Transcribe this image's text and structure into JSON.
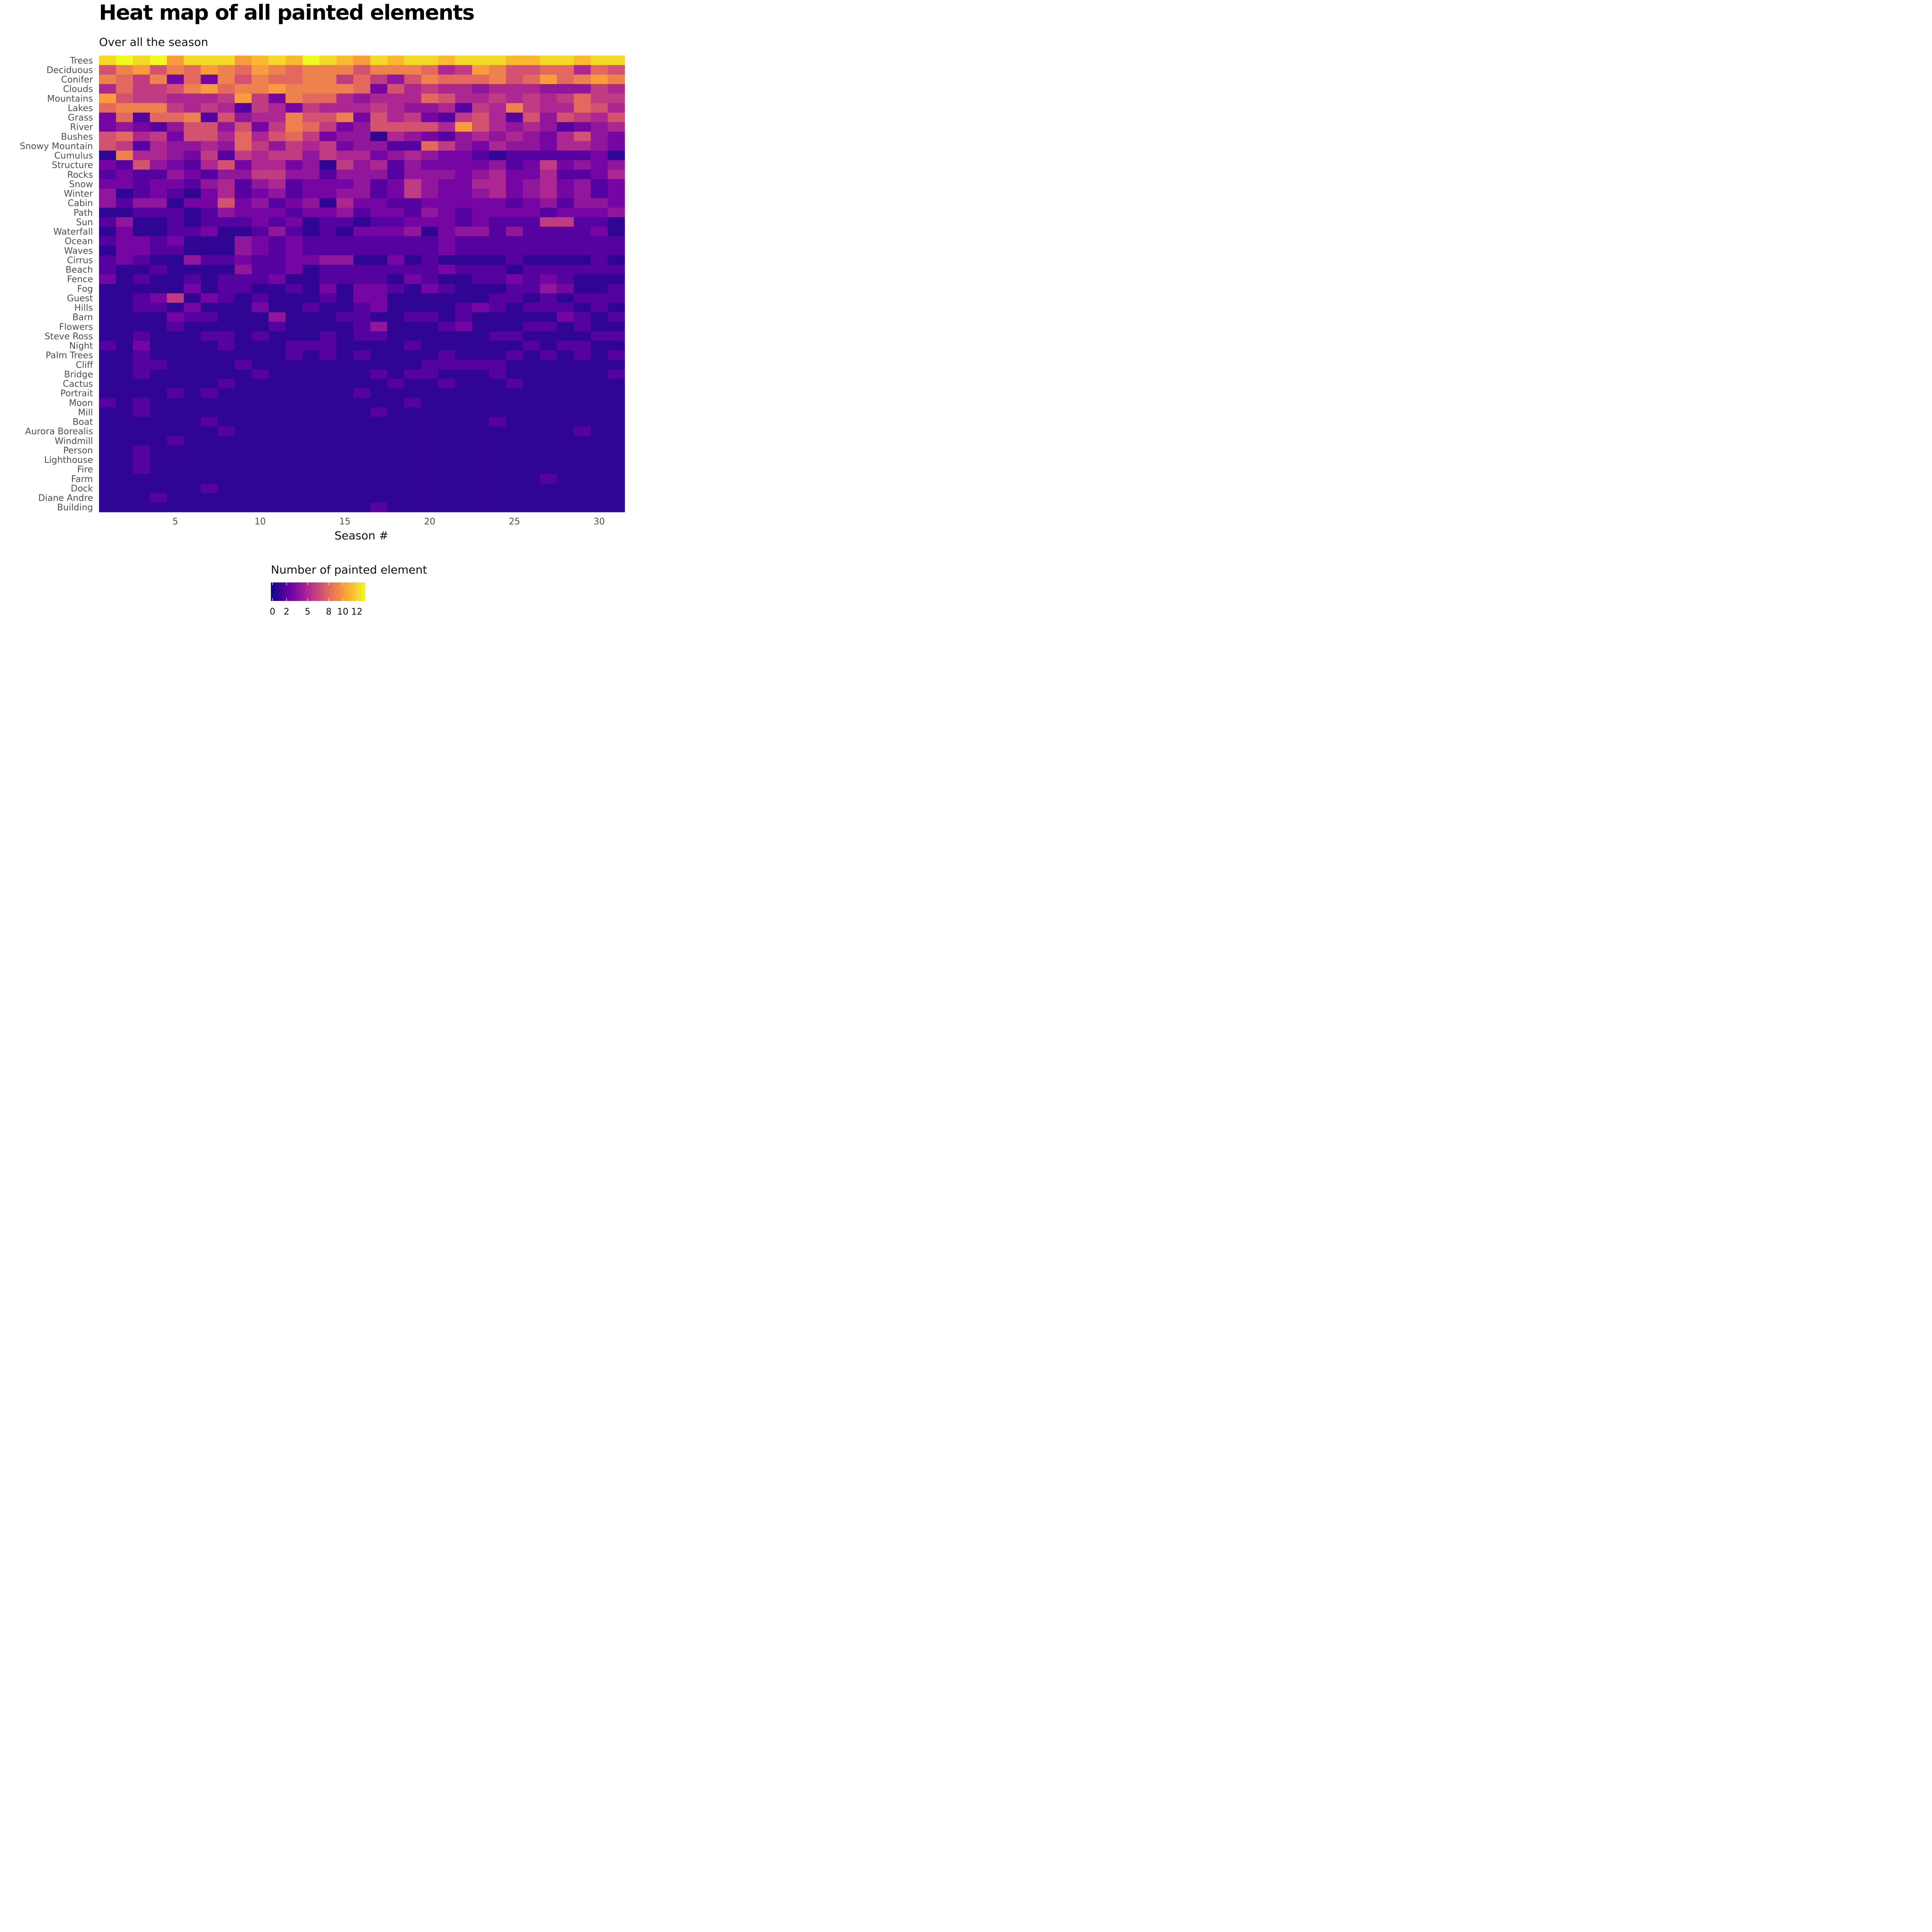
{
  "title": "Heat map of all painted elements",
  "subtitle": "Over all the season",
  "chart_data": {
    "type": "heatmap",
    "xlabel": "Season #",
    "x": [
      1,
      2,
      3,
      4,
      5,
      6,
      7,
      8,
      9,
      10,
      11,
      12,
      13,
      14,
      15,
      16,
      17,
      18,
      19,
      20,
      21,
      22,
      23,
      24,
      25,
      26,
      27,
      28,
      29,
      30,
      31
    ],
    "xticks": [
      5,
      10,
      15,
      20,
      25,
      30
    ],
    "rows": [
      "Trees",
      "Deciduous",
      "Conifer",
      "Clouds",
      "Mountains",
      "Lakes",
      "Grass",
      "River",
      "Bushes",
      "Snowy Mountain",
      "Cumulus",
      "Structure",
      "Rocks",
      "Snow",
      "Winter",
      "Cabin",
      "Path",
      "Sun",
      "Waterfall",
      "Ocean",
      "Waves",
      "Cirrus",
      "Beach",
      "Fence",
      "Fog",
      "Guest",
      "Hills",
      "Barn",
      "Flowers",
      "Steve Ross",
      "Night",
      "Palm Trees",
      "Cliff",
      "Bridge",
      "Cactus",
      "Portrait",
      "Moon",
      "Mill",
      "Boat",
      "Aurora Borealis",
      "Windmill",
      "Person",
      "Lighthouse",
      "Fire",
      "Farm",
      "Dock",
      "Diane Andre",
      "Building"
    ],
    "values": [
      [
        12,
        13,
        12,
        13,
        10,
        12,
        12,
        12,
        10,
        11,
        12,
        11,
        13,
        12,
        11,
        10,
        12,
        11,
        12,
        12,
        11,
        12,
        12,
        12,
        11,
        11,
        12,
        12,
        11,
        12,
        12
      ],
      [
        7,
        9,
        10,
        7,
        9,
        8,
        10,
        9,
        8,
        10,
        9,
        8,
        9,
        9,
        9,
        7,
        9,
        9,
        9,
        8,
        5,
        6,
        10,
        9,
        7,
        7,
        8,
        8,
        5,
        8,
        7
      ],
      [
        9,
        8,
        6,
        9,
        3,
        8,
        3,
        9,
        7,
        9,
        8,
        8,
        9,
        9,
        6,
        8,
        6,
        4,
        7,
        9,
        8,
        8,
        8,
        9,
        7,
        8,
        10,
        8,
        9,
        10,
        9
      ],
      [
        5,
        8,
        6,
        6,
        7,
        9,
        10,
        8,
        9,
        9,
        10,
        9,
        9,
        9,
        9,
        8,
        3,
        7,
        5,
        6,
        5,
        5,
        4,
        5,
        5,
        5,
        4,
        4,
        4,
        6,
        5
      ],
      [
        10,
        7,
        6,
        6,
        5,
        5,
        5,
        6,
        10,
        6,
        3,
        9,
        8,
        8,
        5,
        4,
        5,
        5,
        5,
        8,
        7,
        5,
        5,
        6,
        5,
        6,
        5,
        6,
        8,
        6,
        6
      ],
      [
        8,
        9,
        9,
        9,
        6,
        5,
        6,
        5,
        2,
        6,
        5,
        3,
        6,
        5,
        5,
        5,
        6,
        5,
        4,
        4,
        5,
        2,
        6,
        5,
        9,
        6,
        5,
        5,
        8,
        7,
        5
      ],
      [
        3,
        8,
        2,
        8,
        8,
        9,
        2,
        7,
        4,
        5,
        5,
        9,
        7,
        7,
        9,
        3,
        7,
        5,
        6,
        3,
        2,
        6,
        7,
        5,
        2,
        7,
        4,
        7,
        6,
        5,
        7
      ],
      [
        3,
        4,
        3,
        2,
        4,
        7,
        7,
        4,
        7,
        3,
        6,
        9,
        8,
        6,
        3,
        4,
        7,
        7,
        7,
        7,
        5,
        10,
        7,
        5,
        4,
        5,
        4,
        2,
        3,
        4,
        5
      ],
      [
        7,
        8,
        5,
        6,
        3,
        7,
        7,
        5,
        8,
        5,
        7,
        8,
        6,
        3,
        4,
        4,
        1,
        5,
        4,
        3,
        2,
        4,
        5,
        4,
        5,
        4,
        3,
        5,
        7,
        4,
        3
      ],
      [
        7,
        6,
        2,
        5,
        4,
        4,
        5,
        4,
        8,
        6,
        4,
        6,
        5,
        6,
        3,
        4,
        4,
        2,
        2,
        8,
        6,
        4,
        3,
        5,
        4,
        4,
        3,
        5,
        5,
        4,
        3
      ],
      [
        1,
        9,
        5,
        5,
        4,
        3,
        6,
        2,
        6,
        5,
        6,
        6,
        4,
        6,
        5,
        5,
        3,
        4,
        5,
        4,
        3,
        3,
        2,
        1,
        2,
        2,
        2,
        2,
        2,
        3,
        1
      ],
      [
        3,
        2,
        7,
        4,
        3,
        2,
        5,
        7,
        3,
        5,
        5,
        3,
        4,
        1,
        6,
        4,
        5,
        2,
        4,
        3,
        3,
        3,
        3,
        4,
        2,
        3,
        6,
        3,
        4,
        3,
        4
      ],
      [
        2,
        3,
        2,
        2,
        4,
        3,
        2,
        4,
        4,
        6,
        6,
        4,
        4,
        2,
        4,
        4,
        4,
        2,
        4,
        4,
        4,
        3,
        4,
        5,
        3,
        3,
        5,
        2,
        2,
        3,
        5
      ],
      [
        3,
        3,
        2,
        3,
        3,
        2,
        4,
        5,
        2,
        4,
        5,
        2,
        3,
        3,
        3,
        4,
        2,
        3,
        6,
        4,
        3,
        3,
        5,
        5,
        3,
        4,
        5,
        3,
        4,
        2,
        3
      ],
      [
        4,
        1,
        2,
        3,
        2,
        1,
        3,
        5,
        2,
        3,
        4,
        2,
        3,
        3,
        4,
        4,
        2,
        3,
        6,
        4,
        3,
        3,
        4,
        5,
        3,
        4,
        5,
        3,
        4,
        2,
        3
      ],
      [
        4,
        2,
        4,
        4,
        1,
        3,
        3,
        7,
        3,
        4,
        2,
        3,
        4,
        1,
        5,
        3,
        3,
        2,
        2,
        3,
        3,
        3,
        3,
        3,
        2,
        3,
        4,
        2,
        4,
        4,
        3
      ],
      [
        1,
        1,
        2,
        2,
        2,
        1,
        2,
        4,
        3,
        3,
        3,
        2,
        3,
        3,
        4,
        2,
        3,
        3,
        2,
        4,
        3,
        2,
        3,
        3,
        3,
        3,
        2,
        3,
        3,
        3,
        4
      ],
      [
        2,
        4,
        1,
        1,
        2,
        1,
        2,
        2,
        2,
        3,
        2,
        3,
        1,
        2,
        2,
        1,
        2,
        2,
        3,
        3,
        3,
        2,
        3,
        2,
        2,
        2,
        6,
        6,
        2,
        2,
        1
      ],
      [
        1,
        3,
        1,
        1,
        2,
        2,
        3,
        1,
        1,
        2,
        4,
        2,
        1,
        2,
        1,
        3,
        3,
        3,
        4,
        1,
        3,
        4,
        4,
        2,
        4,
        2,
        2,
        2,
        2,
        3,
        1
      ],
      [
        2,
        3,
        3,
        2,
        3,
        1,
        1,
        1,
        4,
        3,
        2,
        3,
        2,
        2,
        2,
        2,
        2,
        2,
        2,
        2,
        3,
        2,
        2,
        2,
        2,
        2,
        2,
        2,
        2,
        2,
        2
      ],
      [
        1,
        3,
        3,
        2,
        2,
        1,
        1,
        1,
        4,
        3,
        2,
        3,
        2,
        2,
        2,
        2,
        2,
        2,
        2,
        2,
        3,
        2,
        2,
        2,
        2,
        2,
        2,
        2,
        2,
        2,
        2
      ],
      [
        2,
        3,
        2,
        1,
        1,
        4,
        2,
        2,
        3,
        2,
        2,
        3,
        3,
        4,
        4,
        1,
        1,
        3,
        1,
        2,
        1,
        1,
        1,
        1,
        2,
        1,
        1,
        1,
        1,
        2,
        1
      ],
      [
        2,
        1,
        1,
        2,
        1,
        1,
        1,
        1,
        4,
        2,
        2,
        3,
        1,
        2,
        2,
        2,
        2,
        2,
        2,
        2,
        3,
        2,
        2,
        2,
        1,
        2,
        2,
        2,
        2,
        2,
        2
      ],
      [
        3,
        1,
        2,
        1,
        1,
        2,
        1,
        2,
        2,
        2,
        3,
        1,
        1,
        2,
        2,
        2,
        2,
        1,
        3,
        2,
        1,
        1,
        2,
        2,
        3,
        2,
        3,
        2,
        1,
        1,
        1
      ],
      [
        1,
        1,
        1,
        1,
        1,
        3,
        1,
        2,
        2,
        1,
        1,
        2,
        1,
        3,
        1,
        3,
        3,
        2,
        1,
        3,
        2,
        1,
        1,
        1,
        2,
        2,
        4,
        3,
        1,
        1,
        2
      ],
      [
        1,
        1,
        2,
        3,
        6,
        1,
        3,
        2,
        1,
        2,
        1,
        1,
        1,
        2,
        1,
        3,
        3,
        1,
        1,
        1,
        1,
        1,
        1,
        2,
        2,
        1,
        2,
        1,
        2,
        2,
        2
      ],
      [
        1,
        1,
        2,
        2,
        1,
        3,
        1,
        1,
        1,
        3,
        1,
        1,
        2,
        1,
        1,
        2,
        3,
        1,
        1,
        1,
        1,
        2,
        3,
        2,
        1,
        2,
        2,
        2,
        1,
        2,
        1
      ],
      [
        1,
        1,
        1,
        1,
        3,
        2,
        2,
        1,
        1,
        1,
        4,
        1,
        1,
        1,
        2,
        2,
        1,
        1,
        2,
        2,
        1,
        2,
        1,
        1,
        1,
        1,
        1,
        3,
        2,
        1,
        2
      ],
      [
        1,
        1,
        1,
        1,
        2,
        1,
        1,
        1,
        1,
        1,
        2,
        1,
        1,
        1,
        1,
        2,
        4,
        1,
        1,
        1,
        2,
        3,
        1,
        1,
        1,
        2,
        2,
        1,
        2,
        1,
        1
      ],
      [
        1,
        1,
        2,
        1,
        1,
        1,
        2,
        2,
        1,
        2,
        1,
        1,
        1,
        2,
        1,
        2,
        2,
        1,
        1,
        1,
        1,
        1,
        1,
        2,
        2,
        1,
        1,
        1,
        1,
        2,
        2
      ],
      [
        2,
        1,
        3,
        1,
        1,
        1,
        1,
        2,
        1,
        1,
        1,
        2,
        2,
        2,
        1,
        1,
        1,
        1,
        2,
        1,
        1,
        1,
        1,
        1,
        1,
        2,
        1,
        2,
        2,
        1,
        1
      ],
      [
        1,
        1,
        2,
        1,
        1,
        1,
        1,
        1,
        1,
        1,
        1,
        2,
        1,
        2,
        1,
        2,
        1,
        1,
        1,
        1,
        2,
        1,
        1,
        1,
        2,
        1,
        2,
        1,
        2,
        1,
        2
      ],
      [
        1,
        1,
        2,
        2,
        1,
        1,
        1,
        1,
        2,
        1,
        1,
        1,
        1,
        1,
        1,
        1,
        1,
        1,
        1,
        2,
        2,
        2,
        2,
        2,
        1,
        1,
        1,
        1,
        1,
        1,
        1
      ],
      [
        1,
        1,
        2,
        1,
        1,
        1,
        1,
        1,
        1,
        2,
        1,
        1,
        1,
        1,
        1,
        1,
        2,
        1,
        2,
        2,
        1,
        1,
        1,
        2,
        1,
        1,
        1,
        1,
        1,
        1,
        2
      ],
      [
        1,
        1,
        1,
        1,
        1,
        1,
        1,
        2,
        1,
        1,
        1,
        1,
        1,
        1,
        1,
        1,
        1,
        2,
        1,
        1,
        2,
        1,
        1,
        1,
        2,
        1,
        1,
        1,
        1,
        1,
        1
      ],
      [
        1,
        1,
        1,
        1,
        2,
        1,
        2,
        1,
        1,
        1,
        1,
        1,
        1,
        1,
        1,
        2,
        1,
        1,
        1,
        1,
        1,
        1,
        1,
        1,
        1,
        1,
        1,
        1,
        1,
        1,
        1
      ],
      [
        2,
        1,
        2,
        1,
        1,
        1,
        1,
        1,
        1,
        1,
        1,
        1,
        1,
        1,
        1,
        1,
        1,
        1,
        2,
        1,
        1,
        1,
        1,
        1,
        1,
        1,
        1,
        1,
        1,
        1,
        1
      ],
      [
        1,
        1,
        2,
        1,
        1,
        1,
        1,
        1,
        1,
        1,
        1,
        1,
        1,
        1,
        1,
        1,
        2,
        1,
        1,
        1,
        1,
        1,
        1,
        1,
        1,
        1,
        1,
        1,
        1,
        1,
        1
      ],
      [
        1,
        1,
        1,
        1,
        1,
        1,
        2,
        1,
        1,
        1,
        1,
        1,
        1,
        1,
        1,
        1,
        1,
        1,
        1,
        1,
        1,
        1,
        1,
        2,
        1,
        1,
        1,
        1,
        1,
        1,
        1
      ],
      [
        1,
        1,
        1,
        1,
        1,
        1,
        1,
        2,
        1,
        1,
        1,
        1,
        1,
        1,
        1,
        1,
        1,
        1,
        1,
        1,
        1,
        1,
        1,
        1,
        1,
        1,
        1,
        1,
        2,
        1,
        1
      ],
      [
        1,
        1,
        1,
        1,
        2,
        1,
        1,
        1,
        1,
        1,
        1,
        1,
        1,
        1,
        1,
        1,
        1,
        1,
        1,
        1,
        1,
        1,
        1,
        1,
        1,
        1,
        1,
        1,
        1,
        1,
        1
      ],
      [
        1,
        1,
        2,
        1,
        1,
        1,
        1,
        1,
        1,
        1,
        1,
        1,
        1,
        1,
        1,
        1,
        1,
        1,
        1,
        1,
        1,
        1,
        1,
        1,
        1,
        1,
        1,
        1,
        1,
        1,
        1
      ],
      [
        1,
        1,
        2,
        1,
        1,
        1,
        1,
        1,
        1,
        1,
        1,
        1,
        1,
        1,
        1,
        1,
        1,
        1,
        1,
        1,
        1,
        1,
        1,
        1,
        1,
        1,
        1,
        1,
        1,
        1,
        1
      ],
      [
        1,
        1,
        2,
        1,
        1,
        1,
        1,
        1,
        1,
        1,
        1,
        1,
        1,
        1,
        1,
        1,
        1,
        1,
        1,
        1,
        1,
        1,
        1,
        1,
        1,
        1,
        1,
        1,
        1,
        1,
        1
      ],
      [
        1,
        1,
        1,
        1,
        1,
        1,
        1,
        1,
        1,
        1,
        1,
        1,
        1,
        1,
        1,
        1,
        1,
        1,
        1,
        1,
        1,
        1,
        1,
        1,
        1,
        1,
        2,
        1,
        1,
        1,
        1
      ],
      [
        1,
        1,
        1,
        1,
        1,
        1,
        2,
        1,
        1,
        1,
        1,
        1,
        1,
        1,
        1,
        1,
        1,
        1,
        1,
        1,
        1,
        1,
        1,
        1,
        1,
        1,
        1,
        1,
        1,
        1,
        1
      ],
      [
        1,
        1,
        1,
        2,
        1,
        1,
        1,
        1,
        1,
        1,
        1,
        1,
        1,
        1,
        1,
        1,
        1,
        1,
        1,
        1,
        1,
        1,
        1,
        1,
        1,
        1,
        1,
        1,
        1,
        1,
        1
      ],
      [
        1,
        1,
        1,
        1,
        1,
        1,
        1,
        1,
        1,
        1,
        1,
        1,
        1,
        1,
        1,
        1,
        2,
        1,
        1,
        1,
        1,
        1,
        1,
        1,
        1,
        1,
        1,
        1,
        1,
        1,
        1
      ]
    ],
    "colorscale": "plasma",
    "colors": [
      "#0d0887",
      "#6a00a8",
      "#b12a90",
      "#e16462",
      "#fca636",
      "#f0f921"
    ],
    "zlim": [
      0,
      13
    ],
    "legend": {
      "title": "Number of painted element",
      "ticks": [
        0,
        2,
        5,
        8,
        10,
        12
      ],
      "position": "bottom"
    },
    "grid": false
  }
}
